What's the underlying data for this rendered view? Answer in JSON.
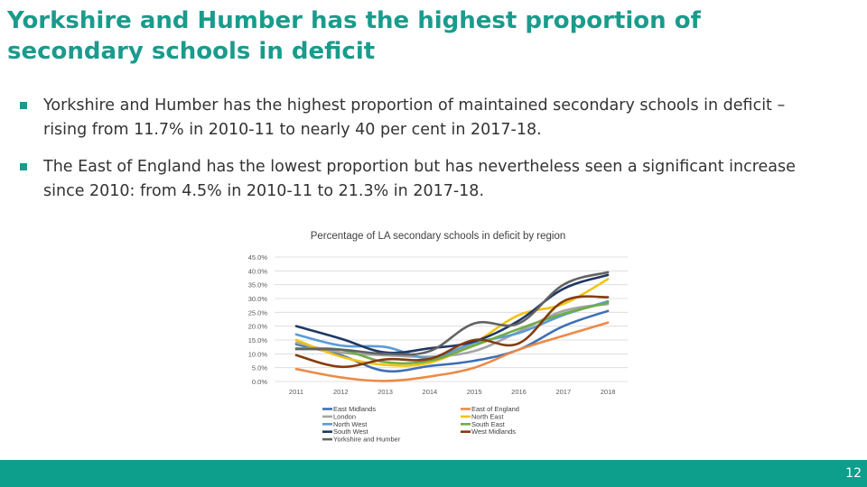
{
  "slide": {
    "title": "Yorkshire and Humber has the highest proportion of secondary schools in deficit",
    "bullets": [
      "Yorkshire and Humber has the highest proportion of maintained secondary schools in deficit – rising from 11.7% in 2010-11 to nearly 40 per cent in 2017-18.",
      "The East of England has the lowest proportion but has nevertheless seen a significant increase since 2010: from 4.5% in 2010-11 to 21.3% in 2017-18."
    ],
    "page_number": "12",
    "accent_color": "#1a9b8c"
  },
  "chart_data": {
    "type": "line",
    "title": "Percentage of LA secondary schools in deficit by region",
    "xlabel": "",
    "ylabel": "",
    "x": [
      "2011",
      "2012",
      "2013",
      "2014",
      "2015",
      "2016",
      "2017",
      "2018"
    ],
    "yticks": [
      "0.0%",
      "5.0%",
      "10.0%",
      "15.0%",
      "20.0%",
      "25.0%",
      "30.0%",
      "35.0%",
      "40.0%",
      "45.0%"
    ],
    "ylim": [
      0,
      45
    ],
    "grid": true,
    "legend_position": "bottom",
    "series": [
      {
        "name": "East Midlands",
        "color": "#3f6fb6",
        "values": [
          13.5,
          9.5,
          3.8,
          5.6,
          7.5,
          11.5,
          20.0,
          25.5
        ]
      },
      {
        "name": "East of England",
        "color": "#ec8a46",
        "values": [
          4.5,
          1.5,
          0.2,
          1.8,
          5.0,
          11.5,
          16.5,
          21.3
        ]
      },
      {
        "name": "London",
        "color": "#a5a5a5",
        "values": [
          14.0,
          10.5,
          9.5,
          9.0,
          11.0,
          18.0,
          25.5,
          28.0
        ]
      },
      {
        "name": "North East",
        "color": "#f2c314",
        "values": [
          15.0,
          9.0,
          6.0,
          6.8,
          14.0,
          24.0,
          28.0,
          37.0
        ]
      },
      {
        "name": "North West",
        "color": "#5b9bd5",
        "values": [
          17.0,
          13.0,
          12.5,
          8.5,
          14.0,
          17.5,
          24.0,
          29.0
        ]
      },
      {
        "name": "South East",
        "color": "#70ad47",
        "values": [
          12.0,
          11.5,
          7.0,
          7.5,
          13.0,
          19.0,
          24.5,
          28.5
        ]
      },
      {
        "name": "South West",
        "color": "#1f3864",
        "values": [
          20.0,
          15.5,
          10.5,
          12.0,
          14.5,
          22.0,
          33.5,
          38.5
        ]
      },
      {
        "name": "West Midlands",
        "color": "#843c0c",
        "values": [
          9.5,
          5.3,
          8.0,
          8.2,
          15.0,
          13.8,
          29.0,
          30.5
        ]
      },
      {
        "name": "Yorkshire and Humber",
        "color": "#636363",
        "values": [
          11.7,
          11.5,
          10.0,
          11.0,
          21.0,
          21.0,
          35.0,
          39.5
        ]
      }
    ]
  }
}
